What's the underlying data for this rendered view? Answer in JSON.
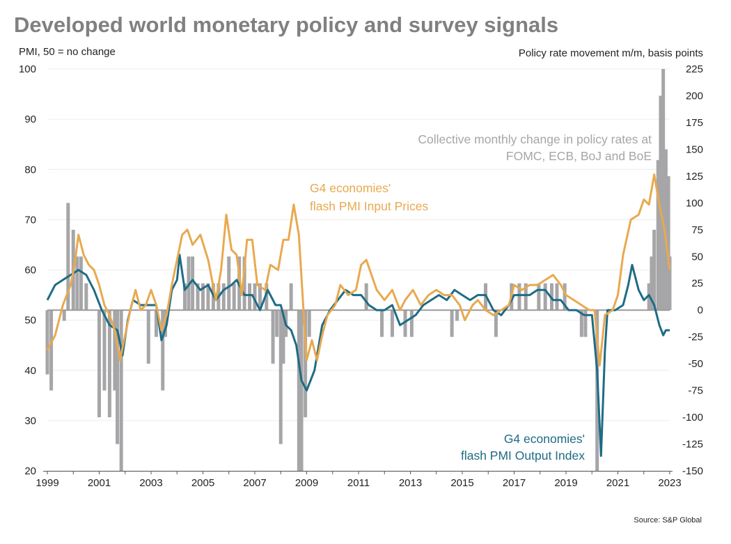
{
  "chart_data": {
    "type": "bar+line",
    "title": "Developed world monetary policy and survey signals",
    "ylabel_left": "PMI, 50 = no change",
    "ylabel_right": "Policy rate movement m/m, basis points",
    "source": "Source: S&P Global",
    "xlim": [
      1999,
      2023
    ],
    "ylim_left": [
      20,
      100
    ],
    "ylim_right": [
      -150,
      225
    ],
    "x_ticks": [
      "1999",
      "2001",
      "2003",
      "2005",
      "2007",
      "2009",
      "2011",
      "2013",
      "2015",
      "2017",
      "2019",
      "2021",
      "2023"
    ],
    "y_ticks_left": [
      "100",
      "90",
      "80",
      "70",
      "60",
      "50",
      "40",
      "30",
      "20"
    ],
    "y_ticks_right": [
      "225",
      "200",
      "175",
      "150",
      "125",
      "100",
      "75",
      "50",
      "25",
      "0",
      "-25",
      "-50",
      "-75",
      "-100",
      "-125",
      "-150"
    ],
    "grid": true,
    "colors": {
      "input_prices": "#e8a94f",
      "output": "#1f6b85",
      "bars": "#a6a6a8",
      "zero_line": "#9a9a9a"
    },
    "annotations": {
      "bars": [
        "Collective monthly change in policy rates at",
        "FOMC, ECB, BoJ and BoE"
      ],
      "input_prices": [
        "G4 economies'",
        "flash PMI Input Prices"
      ],
      "output": [
        "G4 economies'",
        "flash PMI Output Index"
      ]
    },
    "series": [
      {
        "name": "G4 economies' flash PMI Input Prices",
        "axis": "left",
        "type": "line",
        "points": [
          [
            1999.0,
            44
          ],
          [
            1999.3,
            47
          ],
          [
            1999.6,
            53
          ],
          [
            1999.9,
            57
          ],
          [
            2000.05,
            61
          ],
          [
            2000.2,
            67
          ],
          [
            2000.4,
            63
          ],
          [
            2000.6,
            61
          ],
          [
            2000.8,
            60
          ],
          [
            2001.0,
            57
          ],
          [
            2001.2,
            53
          ],
          [
            2001.4,
            51
          ],
          [
            2001.6,
            48
          ],
          [
            2001.8,
            42
          ],
          [
            2002.0,
            47
          ],
          [
            2002.2,
            52
          ],
          [
            2002.4,
            56
          ],
          [
            2002.6,
            52
          ],
          [
            2002.8,
            53
          ],
          [
            2003.0,
            56
          ],
          [
            2003.2,
            53
          ],
          [
            2003.4,
            48
          ],
          [
            2003.6,
            51
          ],
          [
            2003.8,
            57
          ],
          [
            2004.0,
            62
          ],
          [
            2004.2,
            67
          ],
          [
            2004.4,
            68
          ],
          [
            2004.6,
            65
          ],
          [
            2004.9,
            67
          ],
          [
            2005.2,
            62
          ],
          [
            2005.5,
            54
          ],
          [
            2005.7,
            60
          ],
          [
            2005.9,
            71
          ],
          [
            2006.1,
            64
          ],
          [
            2006.3,
            63
          ],
          [
            2006.5,
            55
          ],
          [
            2006.7,
            66
          ],
          [
            2006.9,
            66
          ],
          [
            2007.1,
            57
          ],
          [
            2007.4,
            56
          ],
          [
            2007.6,
            61
          ],
          [
            2007.9,
            60
          ],
          [
            2008.1,
            66
          ],
          [
            2008.3,
            66
          ],
          [
            2008.5,
            73
          ],
          [
            2008.7,
            67
          ],
          [
            2008.9,
            50
          ],
          [
            2009.0,
            42
          ],
          [
            2009.2,
            46
          ],
          [
            2009.4,
            42
          ],
          [
            2009.6,
            47
          ],
          [
            2009.8,
            51
          ],
          [
            2010.1,
            53
          ],
          [
            2010.3,
            57
          ],
          [
            2010.6,
            55
          ],
          [
            2010.9,
            56
          ],
          [
            2011.1,
            61
          ],
          [
            2011.3,
            62
          ],
          [
            2011.5,
            59
          ],
          [
            2011.7,
            56
          ],
          [
            2012.0,
            54
          ],
          [
            2012.3,
            56
          ],
          [
            2012.6,
            52
          ],
          [
            2012.8,
            54
          ],
          [
            2013.1,
            56
          ],
          [
            2013.4,
            53
          ],
          [
            2013.7,
            55
          ],
          [
            2014.0,
            56
          ],
          [
            2014.3,
            55
          ],
          [
            2014.6,
            55
          ],
          [
            2014.9,
            53
          ],
          [
            2015.1,
            50
          ],
          [
            2015.4,
            53
          ],
          [
            2015.6,
            54
          ],
          [
            2015.9,
            52
          ],
          [
            2016.2,
            51
          ],
          [
            2016.5,
            52
          ],
          [
            2016.8,
            53
          ],
          [
            2017.0,
            57
          ],
          [
            2017.3,
            56
          ],
          [
            2017.6,
            57
          ],
          [
            2017.9,
            57
          ],
          [
            2018.2,
            58
          ],
          [
            2018.5,
            59
          ],
          [
            2018.8,
            57
          ],
          [
            2019.0,
            55
          ],
          [
            2019.3,
            54
          ],
          [
            2019.6,
            53
          ],
          [
            2019.9,
            52
          ],
          [
            2020.1,
            52
          ],
          [
            2020.3,
            41
          ],
          [
            2020.5,
            51
          ],
          [
            2020.8,
            52
          ],
          [
            2021.0,
            55
          ],
          [
            2021.2,
            63
          ],
          [
            2021.5,
            70
          ],
          [
            2021.8,
            71
          ],
          [
            2022.0,
            74
          ],
          [
            2022.2,
            73
          ],
          [
            2022.4,
            79
          ],
          [
            2022.6,
            73
          ],
          [
            2022.8,
            68
          ],
          [
            2023.0,
            60
          ]
        ]
      },
      {
        "name": "G4 economies' flash PMI Output Index",
        "axis": "left",
        "type": "line",
        "points": [
          [
            1999.0,
            54
          ],
          [
            1999.3,
            57
          ],
          [
            1999.6,
            58
          ],
          [
            1999.9,
            59
          ],
          [
            2000.2,
            60
          ],
          [
            2000.5,
            59
          ],
          [
            2000.8,
            56
          ],
          [
            2001.1,
            52
          ],
          [
            2001.4,
            49
          ],
          [
            2001.7,
            48
          ],
          [
            2001.9,
            43
          ],
          [
            2002.1,
            50
          ],
          [
            2002.3,
            54
          ],
          [
            2002.6,
            53
          ],
          [
            2002.9,
            53
          ],
          [
            2003.2,
            53
          ],
          [
            2003.4,
            46
          ],
          [
            2003.6,
            49
          ],
          [
            2003.8,
            56
          ],
          [
            2004.0,
            58
          ],
          [
            2004.1,
            63
          ],
          [
            2004.3,
            56
          ],
          [
            2004.6,
            58
          ],
          [
            2004.9,
            56
          ],
          [
            2005.2,
            57
          ],
          [
            2005.5,
            54
          ],
          [
            2005.8,
            56
          ],
          [
            2006.1,
            57
          ],
          [
            2006.3,
            58
          ],
          [
            2006.6,
            55
          ],
          [
            2006.9,
            55
          ],
          [
            2007.2,
            52
          ],
          [
            2007.5,
            56
          ],
          [
            2007.8,
            53
          ],
          [
            2008.0,
            53
          ],
          [
            2008.2,
            49
          ],
          [
            2008.4,
            48
          ],
          [
            2008.6,
            45
          ],
          [
            2008.8,
            38
          ],
          [
            2009.0,
            36
          ],
          [
            2009.3,
            40
          ],
          [
            2009.6,
            49
          ],
          [
            2009.9,
            52
          ],
          [
            2010.2,
            54
          ],
          [
            2010.5,
            56
          ],
          [
            2010.8,
            55
          ],
          [
            2011.1,
            55
          ],
          [
            2011.4,
            53
          ],
          [
            2011.7,
            52
          ],
          [
            2012.0,
            52
          ],
          [
            2012.3,
            53
          ],
          [
            2012.6,
            49
          ],
          [
            2012.9,
            50
          ],
          [
            2013.2,
            51
          ],
          [
            2013.5,
            53
          ],
          [
            2013.8,
            54
          ],
          [
            2014.1,
            55
          ],
          [
            2014.4,
            54
          ],
          [
            2014.7,
            56
          ],
          [
            2015.0,
            55
          ],
          [
            2015.3,
            54
          ],
          [
            2015.6,
            55
          ],
          [
            2015.9,
            55
          ],
          [
            2016.2,
            52
          ],
          [
            2016.5,
            51
          ],
          [
            2016.8,
            53
          ],
          [
            2017.0,
            55
          ],
          [
            2017.3,
            55
          ],
          [
            2017.6,
            55
          ],
          [
            2017.9,
            56
          ],
          [
            2018.2,
            56
          ],
          [
            2018.5,
            54
          ],
          [
            2018.8,
            54
          ],
          [
            2019.1,
            52
          ],
          [
            2019.4,
            52
          ],
          [
            2019.7,
            51
          ],
          [
            2020.0,
            51
          ],
          [
            2020.2,
            40
          ],
          [
            2020.35,
            23
          ],
          [
            2020.5,
            44
          ],
          [
            2020.6,
            52
          ],
          [
            2020.9,
            52
          ],
          [
            2021.2,
            53
          ],
          [
            2021.4,
            57
          ],
          [
            2021.55,
            61
          ],
          [
            2021.8,
            56
          ],
          [
            2022.0,
            54
          ],
          [
            2022.2,
            55
          ],
          [
            2022.4,
            53
          ],
          [
            2022.6,
            49
          ],
          [
            2022.75,
            47
          ],
          [
            2022.85,
            48
          ],
          [
            2023.0,
            48
          ]
        ]
      },
      {
        "name": "Collective monthly change in policy rates at FOMC, ECB, BoJ and BoE",
        "axis": "right",
        "type": "bar",
        "points": [
          [
            1999.0,
            -60
          ],
          [
            1999.15,
            -75
          ],
          [
            1999.65,
            -10
          ],
          [
            1999.8,
            100
          ],
          [
            2000.0,
            75
          ],
          [
            2000.15,
            50
          ],
          [
            2000.3,
            50
          ],
          [
            2000.5,
            25
          ],
          [
            2001.0,
            -100
          ],
          [
            2001.2,
            -75
          ],
          [
            2001.4,
            -100
          ],
          [
            2001.6,
            -75
          ],
          [
            2001.7,
            -125
          ],
          [
            2001.85,
            -150
          ],
          [
            2002.9,
            -50
          ],
          [
            2003.2,
            -25
          ],
          [
            2003.45,
            -75
          ],
          [
            2003.55,
            -25
          ],
          [
            2004.3,
            25
          ],
          [
            2004.45,
            50
          ],
          [
            2004.6,
            50
          ],
          [
            2004.8,
            25
          ],
          [
            2005.0,
            25
          ],
          [
            2005.2,
            25
          ],
          [
            2005.4,
            25
          ],
          [
            2005.6,
            25
          ],
          [
            2005.8,
            25
          ],
          [
            2006.0,
            50
          ],
          [
            2006.2,
            25
          ],
          [
            2006.4,
            50
          ],
          [
            2006.6,
            50
          ],
          [
            2006.8,
            25
          ],
          [
            2007.0,
            25
          ],
          [
            2007.2,
            25
          ],
          [
            2007.45,
            25
          ],
          [
            2007.7,
            -50
          ],
          [
            2007.85,
            -25
          ],
          [
            2008.0,
            -125
          ],
          [
            2008.1,
            -50
          ],
          [
            2008.2,
            -25
          ],
          [
            2008.4,
            25
          ],
          [
            2008.7,
            -150
          ],
          [
            2008.8,
            -150
          ],
          [
            2008.95,
            -100
          ],
          [
            2009.1,
            -25
          ],
          [
            2011.3,
            25
          ],
          [
            2011.9,
            -25
          ],
          [
            2012.3,
            -25
          ],
          [
            2012.8,
            -25
          ],
          [
            2013.05,
            -25
          ],
          [
            2014.6,
            -25
          ],
          [
            2014.8,
            -10
          ],
          [
            2015.9,
            25
          ],
          [
            2016.3,
            -25
          ],
          [
            2016.9,
            25
          ],
          [
            2017.2,
            25
          ],
          [
            2017.45,
            25
          ],
          [
            2017.95,
            25
          ],
          [
            2018.2,
            25
          ],
          [
            2018.45,
            25
          ],
          [
            2018.65,
            25
          ],
          [
            2018.95,
            25
          ],
          [
            2019.6,
            -25
          ],
          [
            2019.75,
            -25
          ],
          [
            2020.2,
            -150
          ],
          [
            2022.2,
            25
          ],
          [
            2022.3,
            50
          ],
          [
            2022.4,
            75
          ],
          [
            2022.55,
            140
          ],
          [
            2022.65,
            200
          ],
          [
            2022.75,
            225
          ],
          [
            2022.85,
            150
          ],
          [
            2022.95,
            125
          ],
          [
            2023.0,
            50
          ]
        ]
      }
    ]
  }
}
